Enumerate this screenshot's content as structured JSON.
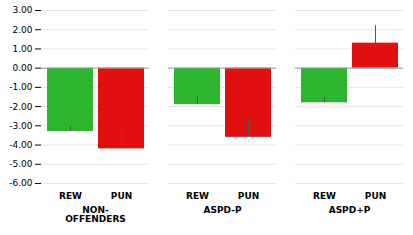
{
  "chart_data": {
    "type": "bar",
    "categories": [
      "NON-\nOFFENDERS",
      "ASPD-P",
      "ASPD+P"
    ],
    "series": [
      {
        "name": "REW",
        "color": "#2db52d",
        "values": [
          -3.3,
          -1.9,
          -1.8
        ],
        "error_lo": [
          0,
          0,
          0
        ],
        "error_hi": [
          0.3,
          0.4,
          0.3
        ]
      },
      {
        "name": "PUN",
        "color": "#e01010",
        "values": [
          -4.2,
          -3.6,
          1.3
        ],
        "error_lo": [
          0,
          0,
          0.5
        ],
        "error_hi": [
          1.0,
          0.9,
          0.9
        ]
      }
    ],
    "ylim": [
      -6.0,
      3.0
    ],
    "yticks": [
      {
        "value": 3.0,
        "label": "3.00"
      },
      {
        "value": 2.0,
        "label": "2.00"
      },
      {
        "value": 1.0,
        "label": "1.00"
      },
      {
        "value": 0.0,
        "label": "0.00"
      },
      {
        "value": -1.0,
        "label": "-1.00"
      },
      {
        "value": -2.0,
        "label": "-2.00"
      },
      {
        "value": -3.0,
        "label": "-3.00"
      },
      {
        "value": -4.0,
        "label": "-4.00"
      },
      {
        "value": -5.0,
        "label": "-5.00"
      },
      {
        "value": -6.0,
        "label": "-6.00"
      }
    ],
    "grid": true
  }
}
